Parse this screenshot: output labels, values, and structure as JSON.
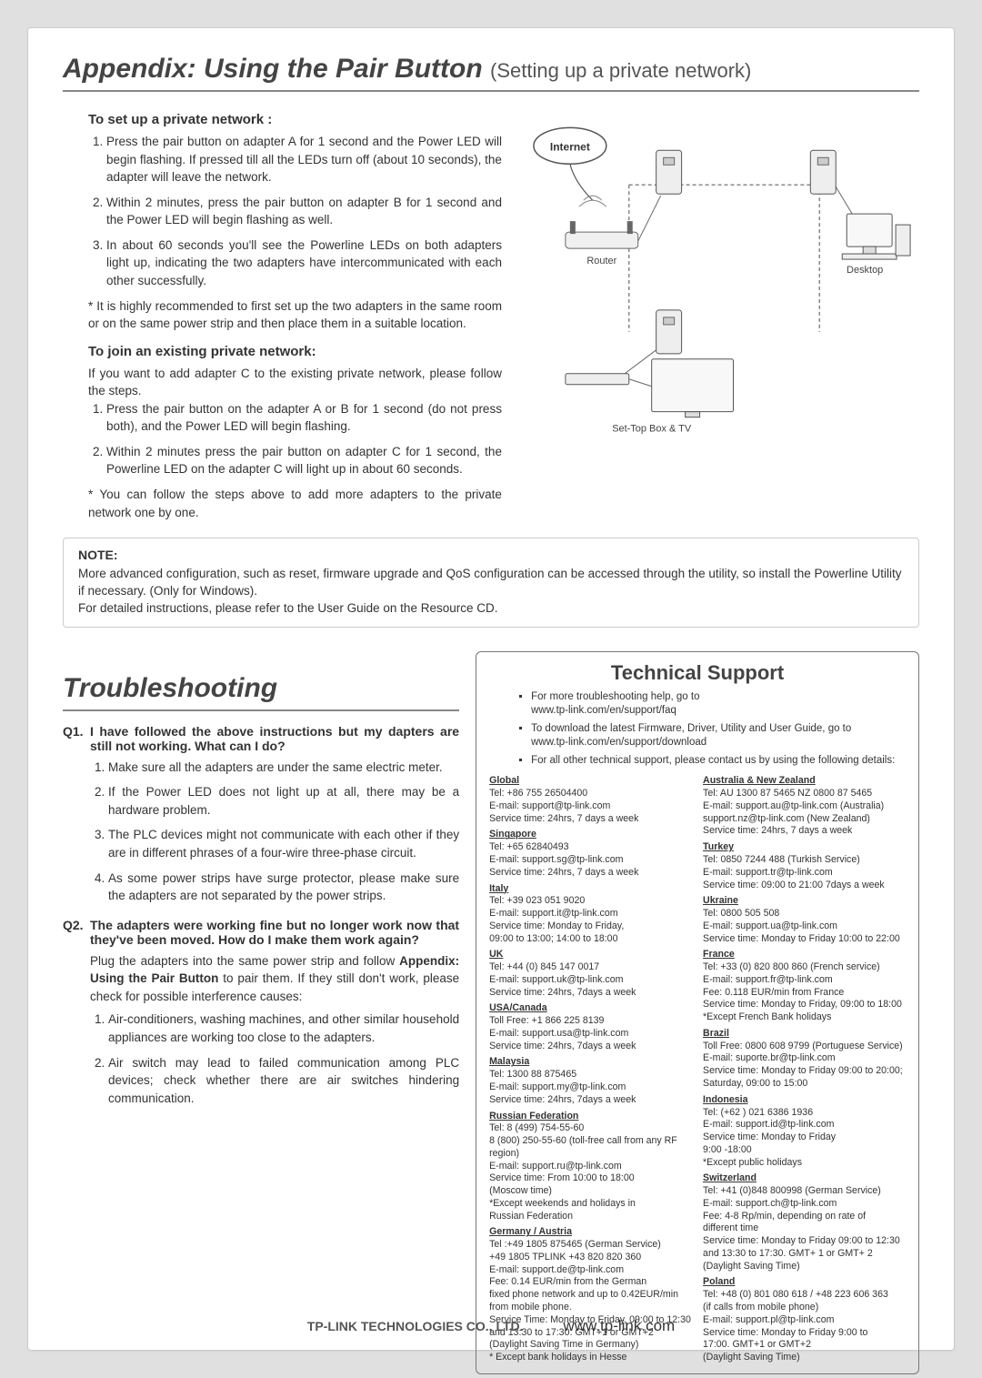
{
  "appendix": {
    "title": "Appendix: Using the Pair Button",
    "subtitle": "(Setting up a private network)",
    "setup_heading": "To set up a private network :",
    "setup_steps": [
      "Press the pair button on adapter A for 1 second and the Power LED will begin flashing. If pressed till all the LEDs turn off (about 10 seconds), the adapter will leave the network.",
      "Within 2 minutes, press the pair button on adapter B for 1 second and the Power LED will begin flashing as well.",
      "In about 60 seconds you'll see the Powerline LEDs on both adapters light up, indicating the two adapters have intercommunicated with each other successfully."
    ],
    "setup_note": "* It is highly recommended to first set up the two adapters in the same room or on the same power strip and then place them in a suitable location.",
    "join_heading": "To join an existing private network:",
    "join_intro": "If you want to add adapter C to the existing private network, please follow the steps.",
    "join_steps": [
      "Press the pair button on the adapter A or B for 1 second (do not press both), and the Power LED will begin flashing.",
      "Within 2 minutes press the pair button on adapter C for 1 second, the Powerline LED on the adapter C will light up in about 60 seconds."
    ],
    "join_note": "* You can follow the steps above to add more adapters to the private network one by one.",
    "note_label": "NOTE:",
    "note_text1": "More advanced configuration, such as reset, firmware upgrade and QoS configuration can be accessed through the utility, so install the Powerline Utility if necessary. (Only for Windows).",
    "note_text2": "For detailed instructions, please refer to the User Guide on the Resource CD."
  },
  "diagram": {
    "internet": "Internet",
    "router": "Router",
    "desktop": "Desktop",
    "settop": "Set-Top Box & TV"
  },
  "troubleshoot": {
    "title": "Troubleshooting",
    "q1_n": "Q1.",
    "q1": "I have followed the above instructions but my dapters are still not working. What can I do?",
    "a1": [
      "Make sure all the adapters are under the same electric meter.",
      "If the Power LED does not light up at all, there may be a hardware problem.",
      "The PLC devices might not communicate with each other if they are in different phrases of a four-wire three-phase circuit.",
      "As some power strips have surge protector, please make sure the adapters are not separated by the power strips."
    ],
    "q2_n": "Q2.",
    "q2": "The adapters were working fine but no longer work now that they've been moved. How do I make them work again?",
    "a2_intro_a": "Plug the adapters into the same power strip and follow ",
    "a2_intro_b": "Appendix: Using the Pair Button",
    "a2_intro_c": " to pair them. If they still don't work, please check for possible interference causes:",
    "a2": [
      "Air-conditioners, washing machines, and other similar household appliances are working too close to the adapters.",
      "Air switch may lead to failed communication among PLC devices; check whether there are air switches hindering communication."
    ]
  },
  "tech": {
    "title": "Technical Support",
    "b1": "For more troubleshooting help, go to",
    "b1u": "www.tp-link.com/en/support/faq",
    "b2": "To download the latest Firmware, Driver, Utility and User Guide, go to",
    "b2u": "www.tp-link.com/en/support/download",
    "b3": "For all other technical support, please contact us by using the following details:",
    "left": [
      {
        "r": "Global",
        "lines": [
          "Tel: +86 755 26504400",
          "E-mail: support@tp-link.com",
          "Service time: 24hrs, 7 days a week"
        ]
      },
      {
        "r": "Singapore",
        "lines": [
          "Tel: +65 62840493",
          "E-mail: support.sg@tp-link.com",
          "Service time: 24hrs, 7 days a week"
        ]
      },
      {
        "r": "Italy",
        "lines": [
          "Tel: +39 023 051 9020",
          "E-mail: support.it@tp-link.com",
          "Service time: Monday to Friday,",
          "09:00 to 13:00; 14:00 to 18:00"
        ]
      },
      {
        "r": "UK",
        "lines": [
          "Tel: +44 (0) 845 147 0017",
          "E-mail: support.uk@tp-link.com",
          "Service time: 24hrs, 7days a week"
        ]
      },
      {
        "r": "USA/Canada",
        "lines": [
          "Toll Free: +1 866 225 8139",
          "E-mail: support.usa@tp-link.com",
          "Service time: 24hrs, 7days a week"
        ]
      },
      {
        "r": "Malaysia",
        "lines": [
          "Tel: 1300 88 875465",
          "E-mail: support.my@tp-link.com",
          "Service time: 24hrs, 7days a week"
        ]
      },
      {
        "r": "Russian Federation",
        "lines": [
          "Tel: 8 (499) 754-55-60",
          "8 (800) 250-55-60 (toll-free call from any RF region)",
          "E-mail: support.ru@tp-link.com",
          "Service time: From 10:00 to 18:00",
          "(Moscow time)",
          "*Except weekends and holidays in",
          "Russian Federation"
        ]
      },
      {
        "r": "Germany / Austria",
        "lines": [
          "Tel :+49 1805 875465 (German Service)",
          "     +49 1805 TPLINK  +43 820 820 360",
          "E-mail: support.de@tp-link.com",
          "Fee: 0.14 EUR/min from the German",
          "fixed phone network and up to 0.42EUR/min from mobile phone.",
          "Service Time: Monday to Friday, 09:00 to 12:30 and 13:30 to 17:30. GMT+1 or GMT+2",
          "(Daylight Saving Time in Germany)",
          "* Except bank holidays in Hesse"
        ]
      }
    ],
    "right": [
      {
        "r": "Australia & New Zealand",
        "lines": [
          "Tel:  AU 1300 87 5465     NZ 0800 87 5465",
          "E-mail: support.au@tp-link.com (Australia)",
          "support.nz@tp-link.com (New Zealand)",
          "Service time: 24hrs, 7 days a week"
        ]
      },
      {
        "r": "Turkey",
        "lines": [
          "Tel: 0850 7244 488 (Turkish Service)",
          "E-mail: support.tr@tp-link.com",
          "Service time: 09:00 to 21:00 7days a week"
        ]
      },
      {
        "r": "Ukraine",
        "lines": [
          "Tel: 0800 505 508",
          "E-mail: support.ua@tp-link.com",
          "Service time: Monday to Friday 10:00 to 22:00"
        ]
      },
      {
        "r": "France",
        "lines": [
          "Tel: +33 (0) 820 800 860 (French service)",
          "E-mail: support.fr@tp-link.com",
          "Fee: 0.118 EUR/min from France",
          "Service time: Monday to Friday, 09:00 to 18:00",
          "*Except French Bank holidays"
        ]
      },
      {
        "r": "Brazil",
        "lines": [
          "Toll Free: 0800 608 9799 (Portuguese Service)",
          "E-mail: suporte.br@tp-link.com",
          "Service time: Monday to Friday 09:00 to 20:00; Saturday, 09:00 to 15:00"
        ]
      },
      {
        "r": "Indonesia",
        "lines": [
          "Tel: (+62 ) 021 6386 1936",
          "E-mail: support.id@tp-link.com",
          "Service time:  Monday to Friday",
          "9:00 -18:00",
          "*Except public holidays"
        ]
      },
      {
        "r": "Switzerland",
        "lines": [
          "Tel: +41 (0)848 800998 (German Service)",
          "E-mail: support.ch@tp-link.com",
          "Fee: 4-8 Rp/min, depending on rate of",
          "different time",
          "Service time: Monday to Friday 09:00 to 12:30 and 13:30 to 17:30. GMT+ 1 or GMT+ 2",
          "(Daylight Saving Time)"
        ]
      },
      {
        "r": "Poland",
        "lines": [
          "Tel: +48 (0) 801 080 618 / +48 223 606 363",
          "    (if calls from mobile phone)",
          "E-mail: support.pl@tp-link.com",
          "Service time: Monday to Friday 9:00 to",
          "17:00. GMT+1 or GMT+2",
          "(Daylight Saving Time)"
        ]
      }
    ]
  },
  "footer": {
    "company": "TP-LINK TECHNOLOGIES CO., LTD.",
    "url": "www.tp-link.com"
  }
}
